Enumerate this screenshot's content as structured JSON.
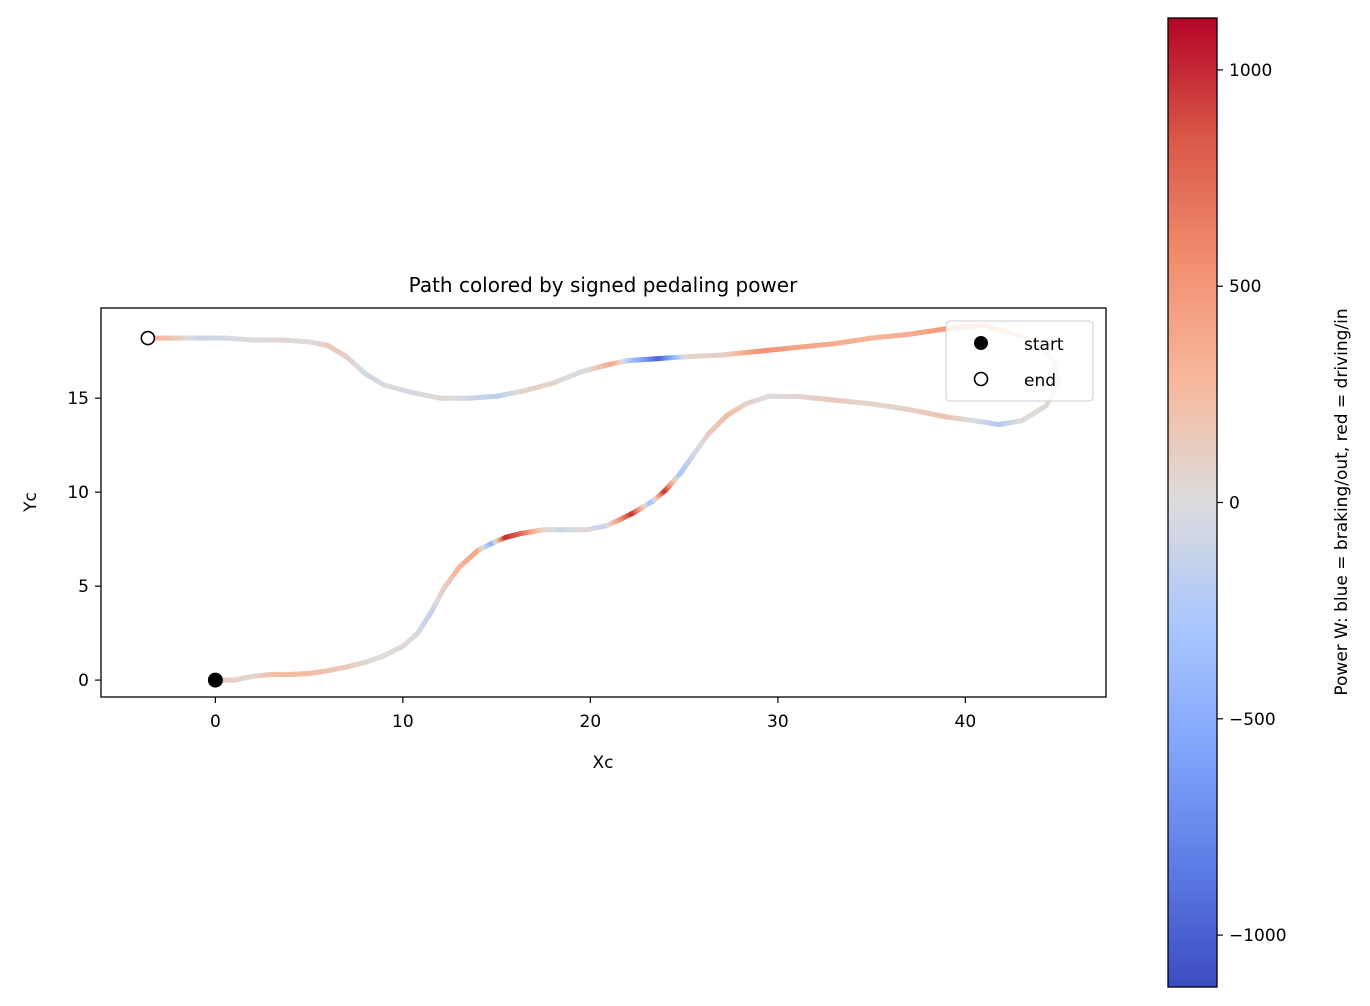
{
  "chart_data": {
    "type": "scatter",
    "title": "Path colored by signed pedaling power",
    "xlabel": "Xc",
    "ylabel": "Yc",
    "xlim": [
      -6.1,
      47.5
    ],
    "ylim": [
      -0.9,
      19.8
    ],
    "xticks": [
      0,
      10,
      20,
      30,
      40
    ],
    "yticks": [
      0,
      5,
      10,
      15
    ],
    "grid": false,
    "legend": {
      "placement": "upper right",
      "entries": [
        {
          "label": "start",
          "marker": "filled-circle",
          "color": "#000000"
        },
        {
          "label": "end",
          "marker": "hollow-circle",
          "color": "#000000"
        }
      ]
    },
    "colorbar": {
      "label": "Power W: blue = braking/out, red = driving/in",
      "colormap": "coolwarm",
      "range": [
        -1120,
        1120
      ],
      "ticks": [
        -1000,
        -500,
        0,
        500,
        1000
      ]
    },
    "start": {
      "x": 0,
      "y": 0
    },
    "end": {
      "x": -3.6,
      "y": 18.2
    },
    "path": [
      {
        "x": 0,
        "y": 0,
        "p": 150
      },
      {
        "x": 1,
        "y": 0,
        "p": 100
      },
      {
        "x": 2,
        "y": 0.2,
        "p": 50
      },
      {
        "x": 3,
        "y": 0.3,
        "p": 200
      },
      {
        "x": 4,
        "y": 0.3,
        "p": 250
      },
      {
        "x": 5,
        "y": 0.35,
        "p": 250
      },
      {
        "x": 6,
        "y": 0.5,
        "p": 200
      },
      {
        "x": 7,
        "y": 0.7,
        "p": 150
      },
      {
        "x": 8,
        "y": 0.95,
        "p": 50
      },
      {
        "x": 9,
        "y": 1.3,
        "p": 0
      },
      {
        "x": 10,
        "y": 1.8,
        "p": 50
      },
      {
        "x": 10.8,
        "y": 2.5,
        "p": -50
      },
      {
        "x": 11.5,
        "y": 3.6,
        "p": -150
      },
      {
        "x": 12.2,
        "y": 4.9,
        "p": 100
      },
      {
        "x": 13,
        "y": 6,
        "p": 300
      },
      {
        "x": 14,
        "y": 6.9,
        "p": 400
      },
      {
        "x": 14.8,
        "y": 7.3,
        "p": -500
      },
      {
        "x": 15.5,
        "y": 7.6,
        "p": 1000
      },
      {
        "x": 16.3,
        "y": 7.8,
        "p": 800
      },
      {
        "x": 17.5,
        "y": 8,
        "p": 100
      },
      {
        "x": 18.5,
        "y": 8,
        "p": -100
      },
      {
        "x": 19.8,
        "y": 8,
        "p": 50
      },
      {
        "x": 20.8,
        "y": 8.2,
        "p": -150
      },
      {
        "x": 21.5,
        "y": 8.5,
        "p": 400
      },
      {
        "x": 22.3,
        "y": 8.9,
        "p": 1000
      },
      {
        "x": 23.3,
        "y": 9.5,
        "p": -400
      },
      {
        "x": 24,
        "y": 10.1,
        "p": 1000
      },
      {
        "x": 24.8,
        "y": 11,
        "p": -300
      },
      {
        "x": 25.5,
        "y": 12,
        "p": -100
      },
      {
        "x": 26.3,
        "y": 13.1,
        "p": 100
      },
      {
        "x": 27.3,
        "y": 14.1,
        "p": 250
      },
      {
        "x": 28.3,
        "y": 14.7,
        "p": 100
      },
      {
        "x": 29.5,
        "y": 15.1,
        "p": 0
      },
      {
        "x": 31,
        "y": 15.1,
        "p": 50
      },
      {
        "x": 33,
        "y": 14.9,
        "p": 150
      },
      {
        "x": 35,
        "y": 14.7,
        "p": 50
      },
      {
        "x": 37,
        "y": 14.4,
        "p": 100
      },
      {
        "x": 39,
        "y": 14,
        "p": 200
      },
      {
        "x": 40.5,
        "y": 13.8,
        "p": 0
      },
      {
        "x": 41.8,
        "y": 13.6,
        "p": -250
      },
      {
        "x": 43,
        "y": 13.8,
        "p": 0
      },
      {
        "x": 44.3,
        "y": 14.6,
        "p": 50
      },
      {
        "x": 45,
        "y": 15.8,
        "p": 50
      },
      {
        "x": 44.7,
        "y": 17,
        "p": 100
      },
      {
        "x": 43.8,
        "y": 18,
        "p": 150
      },
      {
        "x": 42.3,
        "y": 18.5,
        "p": 250
      },
      {
        "x": 41,
        "y": 18.9,
        "p": 450
      },
      {
        "x": 39,
        "y": 18.7,
        "p": 500
      },
      {
        "x": 37,
        "y": 18.4,
        "p": 350
      },
      {
        "x": 35,
        "y": 18.2,
        "p": 300
      },
      {
        "x": 33,
        "y": 17.9,
        "p": 350
      },
      {
        "x": 31,
        "y": 17.7,
        "p": 400
      },
      {
        "x": 29,
        "y": 17.5,
        "p": 550
      },
      {
        "x": 27,
        "y": 17.3,
        "p": 100
      },
      {
        "x": 25,
        "y": 17.2,
        "p": 50
      },
      {
        "x": 23.5,
        "y": 17.1,
        "p": -1000
      },
      {
        "x": 22,
        "y": 17,
        "p": -300
      },
      {
        "x": 21,
        "y": 16.8,
        "p": 400
      },
      {
        "x": 19.5,
        "y": 16.4,
        "p": -50
      },
      {
        "x": 18,
        "y": 15.8,
        "p": 50
      },
      {
        "x": 16.5,
        "y": 15.4,
        "p": 100
      },
      {
        "x": 15,
        "y": 15.1,
        "p": -200
      },
      {
        "x": 13.5,
        "y": 15,
        "p": -100
      },
      {
        "x": 12,
        "y": 15,
        "p": 50
      },
      {
        "x": 10.5,
        "y": 15.3,
        "p": -50
      },
      {
        "x": 9,
        "y": 15.7,
        "p": 0
      },
      {
        "x": 8,
        "y": 16.3,
        "p": -100
      },
      {
        "x": 7,
        "y": 17.2,
        "p": 100
      },
      {
        "x": 6,
        "y": 17.8,
        "p": 150
      },
      {
        "x": 5,
        "y": 18,
        "p": 0
      },
      {
        "x": 3.5,
        "y": 18.1,
        "p": 50
      },
      {
        "x": 2,
        "y": 18.1,
        "p": 0
      },
      {
        "x": 0.5,
        "y": 18.2,
        "p": -50
      },
      {
        "x": -1,
        "y": 18.2,
        "p": -100
      },
      {
        "x": -2.5,
        "y": 18.2,
        "p": 200
      },
      {
        "x": -3.6,
        "y": 18.2,
        "p": 300
      }
    ]
  }
}
